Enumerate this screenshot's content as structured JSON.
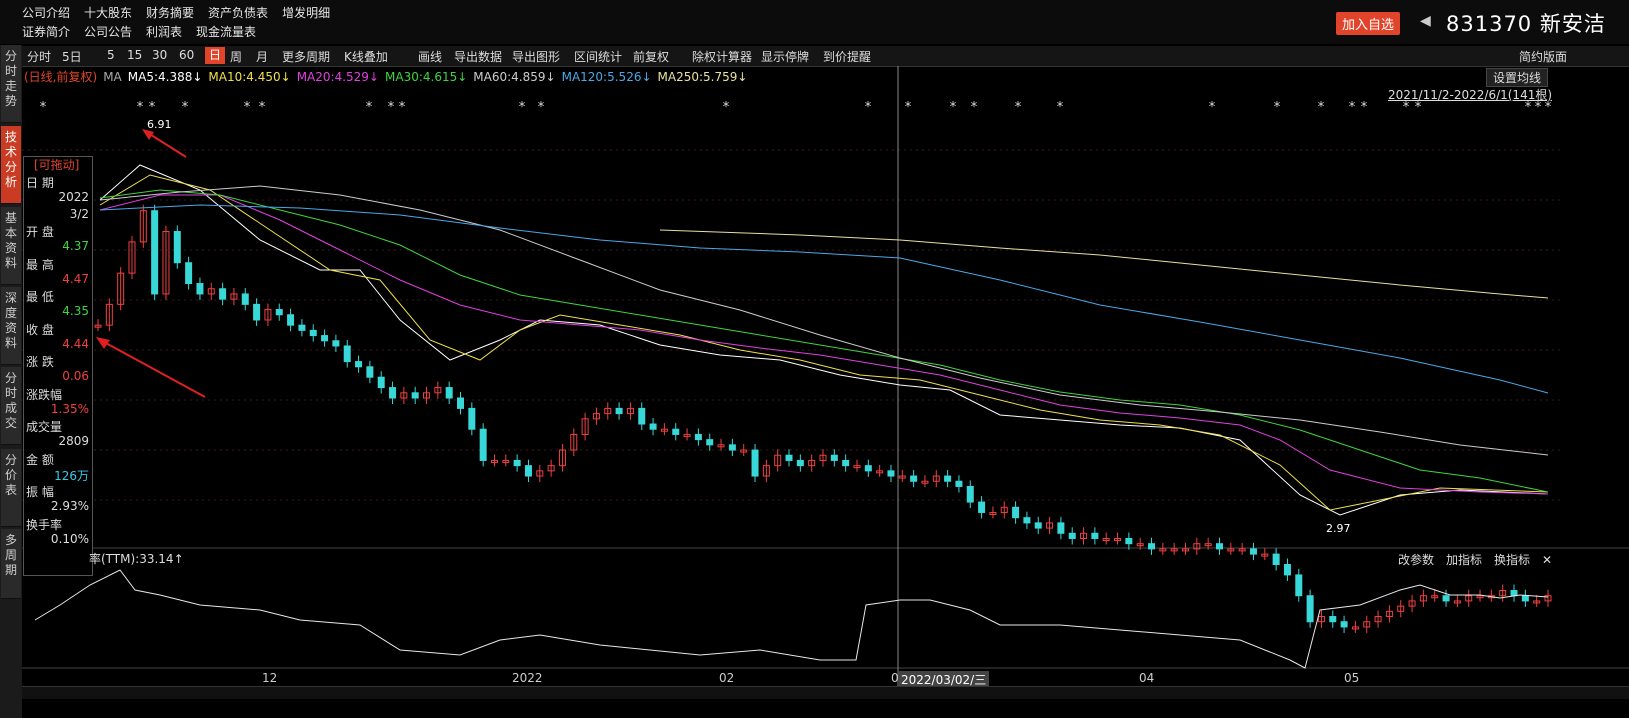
{
  "top": {
    "row1": [
      "公司介绍",
      "十大股东",
      "财务摘要",
      "资产负债表",
      "增发明细"
    ],
    "row2": [
      "证券简介",
      "公司公告",
      "利润表",
      "现金流量表"
    ],
    "add_watch": "加入自选",
    "stock_code": "831370",
    "stock_name": "新安洁"
  },
  "sidebar": [
    {
      "label": "分时走势",
      "active": false
    },
    {
      "label": "技术分析",
      "active": true
    },
    {
      "label": "基本资料",
      "active": false
    },
    {
      "label": "深度资料",
      "active": false
    },
    {
      "label": "分时成交",
      "active": false
    },
    {
      "label": "分价表",
      "active": false
    },
    {
      "label": "多周期",
      "active": false
    }
  ],
  "toolbar": [
    "分时",
    "5日",
    "5",
    "15",
    "30",
    "60",
    "日",
    "周",
    "月",
    "更多周期",
    "K线叠加",
    "画线",
    "导出数据",
    "导出图形",
    "区间统计",
    "前复权",
    "除权计算器",
    "显示停牌",
    "到价提醒",
    "简约版面"
  ],
  "toolbar_active": "日",
  "legend": {
    "prefix": "(日线,前复权)",
    "ma_label": "MA",
    "items": [
      {
        "text": "MA5:4.388↓",
        "color": "#ffffff"
      },
      {
        "text": "MA10:4.450↓",
        "color": "#f0e04a"
      },
      {
        "text": "MA20:4.529↓",
        "color": "#e040e0"
      },
      {
        "text": "MA30:4.615↓",
        "color": "#3ed43e"
      },
      {
        "text": "MA60:4.859↓",
        "color": "#cccccc"
      },
      {
        "text": "MA120:5.526↓",
        "color": "#4aa8e8"
      },
      {
        "text": "MA250:5.759↓",
        "color": "#e8e0a0"
      }
    ]
  },
  "setup_ma": "设置均线",
  "range_text": "2021/11/2-2022/6/1(141根)",
  "high_label": "6.91",
  "low_label": "2.97",
  "info": {
    "title": "[可拖动]",
    "rows": [
      {
        "label": "日    期",
        "value": "2022"
      },
      {
        "label": "",
        "value": "3/2"
      },
      {
        "label": "开    盘",
        "value": "4.37"
      },
      {
        "label": "最    高",
        "value": "4.47"
      },
      {
        "label": "最    低",
        "value": "4.35"
      },
      {
        "label": "收    盘",
        "value": "4.44"
      },
      {
        "label": "涨    跌",
        "value": "0.06"
      },
      {
        "label": "涨跌幅",
        "value": "1.35%"
      },
      {
        "label": "成交量",
        "value": "2809"
      },
      {
        "label": "金    额",
        "value": "126万"
      },
      {
        "label": "振    幅",
        "value": "2.93%"
      },
      {
        "label": "换手率",
        "value": "0.10%"
      }
    ],
    "colors": {
      "open": "#3ed43e",
      "high": "#f04040",
      "low": "#3ed43e",
      "close": "#f04040",
      "change": "#f04040",
      "pct": "#f04040",
      "amount": "#38c8e8"
    }
  },
  "sub": {
    "indicator": "率(TTM):33.14↑",
    "buttons": [
      "改参数",
      "加指标",
      "换指标",
      "✕"
    ]
  },
  "x_labels": [
    "12",
    "2022",
    "02",
    "04",
    "05"
  ],
  "cursor_label": "2022/03/02/三",
  "cursor_short": "0",
  "colors": {
    "up": "#f04040",
    "down": "#38d8d8",
    "bg": "#000000",
    "accent": "#e0452b"
  }
}
